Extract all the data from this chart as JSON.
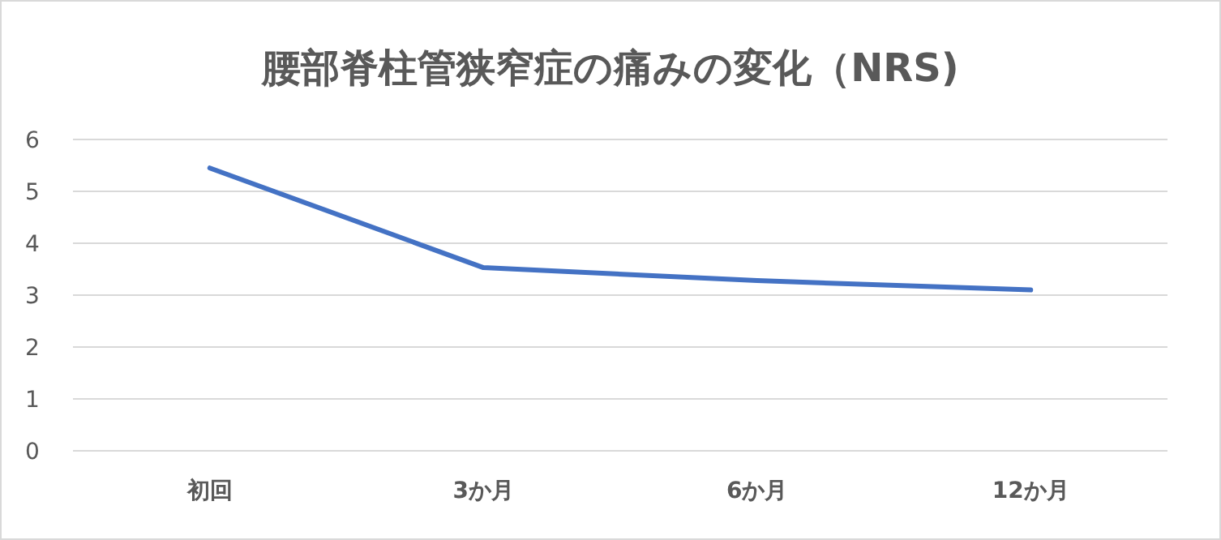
{
  "chart_data": {
    "type": "line",
    "title": "腰部脊柱管狭窄症の痛みの変化（NRS)",
    "categories": [
      "初回",
      "3か月",
      "6か月",
      "12か月"
    ],
    "series": [
      {
        "color": "#4472c4",
        "values": [
          5.45,
          3.53,
          3.28,
          3.1
        ]
      }
    ],
    "ylim": [
      0,
      6
    ],
    "yticks": [
      0,
      1,
      2,
      3,
      4,
      5,
      6
    ],
    "grid": "y"
  }
}
